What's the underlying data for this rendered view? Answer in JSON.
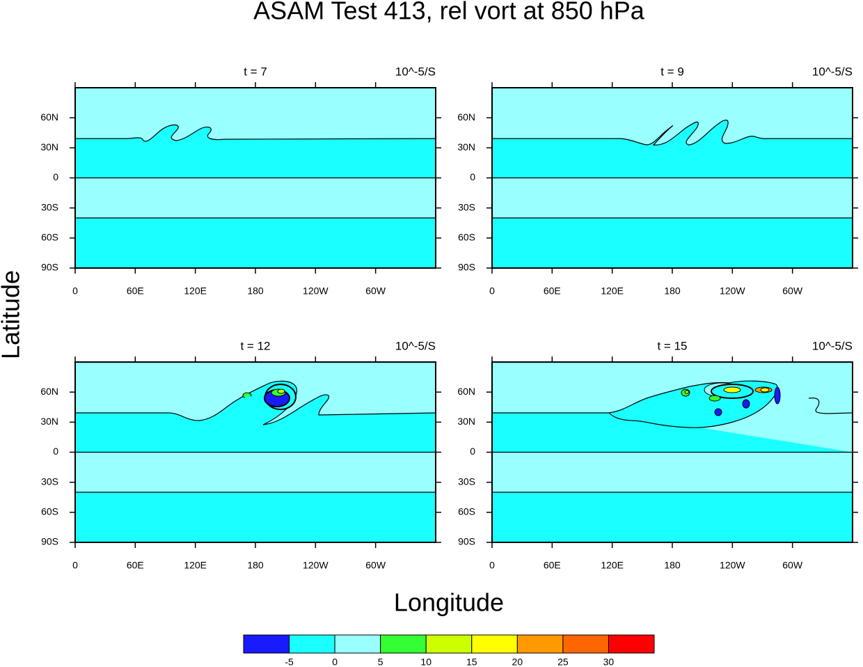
{
  "title": "ASAM Test 413, rel vort at 850 hPa",
  "xlabel": "Longitude",
  "ylabel": "Latitude",
  "colorbar": {
    "levels": [
      -5,
      0,
      5,
      10,
      15,
      20,
      25,
      30
    ],
    "colors": [
      "#1a1aff",
      "#1affff",
      "#99ffff",
      "#33ff33",
      "#ccff00",
      "#ffff00",
      "#ff9900",
      "#ff6600",
      "#ff0000"
    ]
  },
  "chart_data": [
    {
      "type": "contour",
      "center_string": "t = 7",
      "right_string": "10^-5/S",
      "xlim": [
        0,
        360
      ],
      "ylim": [
        -90,
        90
      ],
      "xticks": [
        0,
        {
          "value": 60,
          "label": "60E"
        },
        {
          "value": 120,
          "label": "120E"
        },
        180,
        {
          "value": 240,
          "label": "120W"
        },
        {
          "value": 300,
          "label": "60W"
        }
      ],
      "yticks": [
        {
          "value": -90,
          "label": "90S"
        },
        {
          "value": -60,
          "label": "60S"
        },
        {
          "value": -30,
          "label": "30S"
        },
        0,
        {
          "value": 30,
          "label": "30N"
        },
        {
          "value": 60,
          "label": "60N"
        }
      ]
    },
    {
      "type": "contour",
      "center_string": "t = 9",
      "right_string": "10^-5/S",
      "xlim": [
        0,
        360
      ],
      "ylim": [
        -90,
        90
      ],
      "xticks": [
        0,
        {
          "value": 60,
          "label": "60E"
        },
        {
          "value": 120,
          "label": "120E"
        },
        180,
        {
          "value": 240,
          "label": "120W"
        },
        {
          "value": 300,
          "label": "60W"
        }
      ],
      "yticks": [
        {
          "value": -90,
          "label": "90S"
        },
        {
          "value": -60,
          "label": "60S"
        },
        {
          "value": -30,
          "label": "30S"
        },
        0,
        {
          "value": 30,
          "label": "30N"
        },
        {
          "value": 60,
          "label": "60N"
        }
      ]
    },
    {
      "type": "contour",
      "center_string": "t = 12",
      "right_string": "10^-5/S",
      "xlim": [
        0,
        360
      ],
      "ylim": [
        -90,
        90
      ],
      "xticks": [
        0,
        {
          "value": 60,
          "label": "60E"
        },
        {
          "value": 120,
          "label": "120E"
        },
        180,
        {
          "value": 240,
          "label": "120W"
        },
        {
          "value": 300,
          "label": "60W"
        }
      ],
      "yticks": [
        {
          "value": -90,
          "label": "90S"
        },
        {
          "value": -60,
          "label": "60S"
        },
        {
          "value": -30,
          "label": "30S"
        },
        0,
        {
          "value": 30,
          "label": "30N"
        },
        {
          "value": 60,
          "label": "60N"
        }
      ]
    },
    {
      "type": "contour",
      "center_string": "t = 15",
      "right_string": "10^-5/S",
      "xlim": [
        0,
        360
      ],
      "ylim": [
        -90,
        90
      ],
      "xticks": [
        0,
        {
          "value": 60,
          "label": "60E"
        },
        {
          "value": 120,
          "label": "120E"
        },
        180,
        {
          "value": 240,
          "label": "120W"
        },
        {
          "value": 300,
          "label": "60W"
        }
      ],
      "yticks": [
        {
          "value": -90,
          "label": "90S"
        },
        {
          "value": -60,
          "label": "60S"
        },
        {
          "value": -30,
          "label": "30S"
        },
        0,
        {
          "value": 30,
          "label": "30N"
        },
        {
          "value": 60,
          "label": "60N"
        }
      ]
    }
  ]
}
